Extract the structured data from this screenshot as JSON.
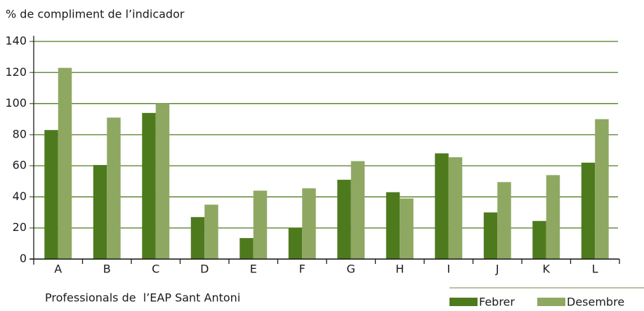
{
  "chart_data": {
    "type": "bar",
    "title": "% de compliment de l’indicador",
    "x_label": "Professionals de  l’EAP Sant Antoni",
    "categories": [
      "A",
      "B",
      "C",
      "D",
      "E",
      "F",
      "G",
      "H",
      "I",
      "J",
      "K",
      "L"
    ],
    "series": [
      {
        "name": "Febrer",
        "color": "#4e7a1e",
        "values": [
          83,
          60.5,
          94,
          27,
          13.5,
          20,
          51,
          43,
          68,
          30,
          24.5,
          62
        ]
      },
      {
        "name": "Desembre",
        "color": "#8ea862",
        "values": [
          123,
          91,
          100,
          35,
          44,
          45.5,
          63,
          39,
          65.5,
          49.5,
          54,
          90
        ]
      }
    ],
    "ylim": [
      0,
      140
    ],
    "yticks": [
      0,
      20,
      40,
      60,
      80,
      100,
      120,
      140
    ],
    "grid": true,
    "legend": "bottom-right"
  }
}
